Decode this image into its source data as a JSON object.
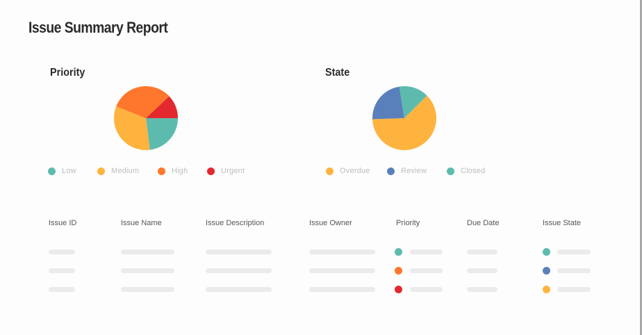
{
  "report": {
    "title": "Issue Summary Report"
  },
  "colors": {
    "teal": "#5DBBAE",
    "yellow": "#FFB33F",
    "orange": "#FF772C",
    "red": "#E3282F",
    "blue": "#5A80BC",
    "placeholder": "#EBEBEB"
  },
  "priority_chart": {
    "title": "Priority",
    "legend": [
      {
        "label": "Low",
        "color": "#5DBBAE"
      },
      {
        "label": "Medium",
        "color": "#FFB33F"
      },
      {
        "label": "High",
        "color": "#FF772C"
      },
      {
        "label": "Urgent",
        "color": "#E3282F"
      }
    ]
  },
  "state_chart": {
    "title": "State",
    "legend": [
      {
        "label": "Overdue",
        "color": "#FFB33F"
      },
      {
        "label": "Review",
        "color": "#5A80BC"
      },
      {
        "label": "Closed",
        "color": "#5DBBAE"
      }
    ]
  },
  "chart_data": [
    {
      "type": "pie",
      "title": "Priority",
      "categories": [
        "Low",
        "Medium",
        "High",
        "Urgent"
      ],
      "values": [
        23,
        33,
        32,
        12
      ],
      "colors": [
        "#5DBBAE",
        "#FFB33F",
        "#FF772C",
        "#E3282F"
      ],
      "start_angle_deg": 0,
      "direction": "clockwise",
      "legend_position": "bottom"
    },
    {
      "type": "pie",
      "title": "State",
      "categories": [
        "Overdue",
        "Review",
        "Closed"
      ],
      "values": [
        62,
        23,
        15
      ],
      "colors": [
        "#FFB33F",
        "#5A80BC",
        "#5DBBAE"
      ],
      "start_angle_deg": -45,
      "direction": "clockwise",
      "legend_position": "bottom"
    }
  ],
  "table": {
    "columns": [
      "Issue ID",
      "Issue Name",
      "Issue Description",
      "Issue Owner",
      "Priority",
      "Due Date",
      "Issue State"
    ],
    "rows": [
      {
        "priority": "Low",
        "priority_color": "#5DBBAE",
        "state": "Closed",
        "state_color": "#5DBBAE"
      },
      {
        "priority": "High",
        "priority_color": "#FF772C",
        "state": "Review",
        "state_color": "#5A80BC"
      },
      {
        "priority": "Urgent",
        "priority_color": "#E3282F",
        "state": "Overdue",
        "state_color": "#FFB33F"
      }
    ]
  }
}
